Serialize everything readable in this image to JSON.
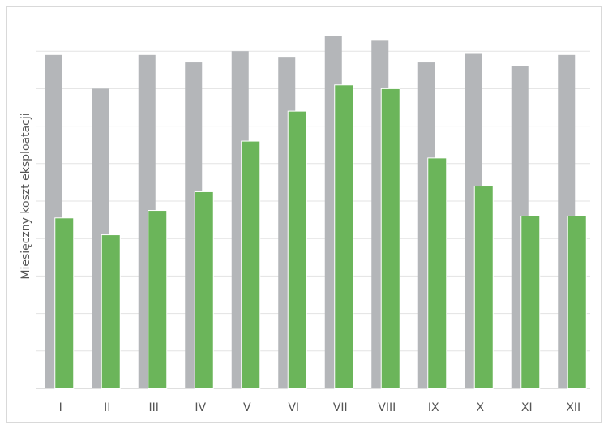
{
  "chart_data": {
    "type": "bar",
    "y_label": "Miesięczny koszt eksploatacji",
    "categories": [
      "I",
      "II",
      "III",
      "IV",
      "V",
      "VI",
      "VII",
      "VIII",
      "IX",
      "X",
      "XI",
      "XII"
    ],
    "series": [
      {
        "color": "#b4b6b9",
        "values": [
          8.9,
          8.0,
          8.9,
          8.7,
          9.0,
          8.85,
          9.4,
          9.3,
          8.7,
          8.95,
          8.6,
          8.9
        ]
      },
      {
        "color": "#6bb55a",
        "values": [
          4.55,
          4.1,
          4.75,
          5.25,
          6.6,
          7.4,
          8.1,
          8.0,
          6.15,
          5.4,
          4.6,
          4.6
        ]
      }
    ],
    "ylim": [
      0,
      10
    ],
    "yticks": [
      0,
      1,
      2,
      3,
      4,
      5,
      6,
      7,
      8,
      9
    ],
    "grid": true
  }
}
